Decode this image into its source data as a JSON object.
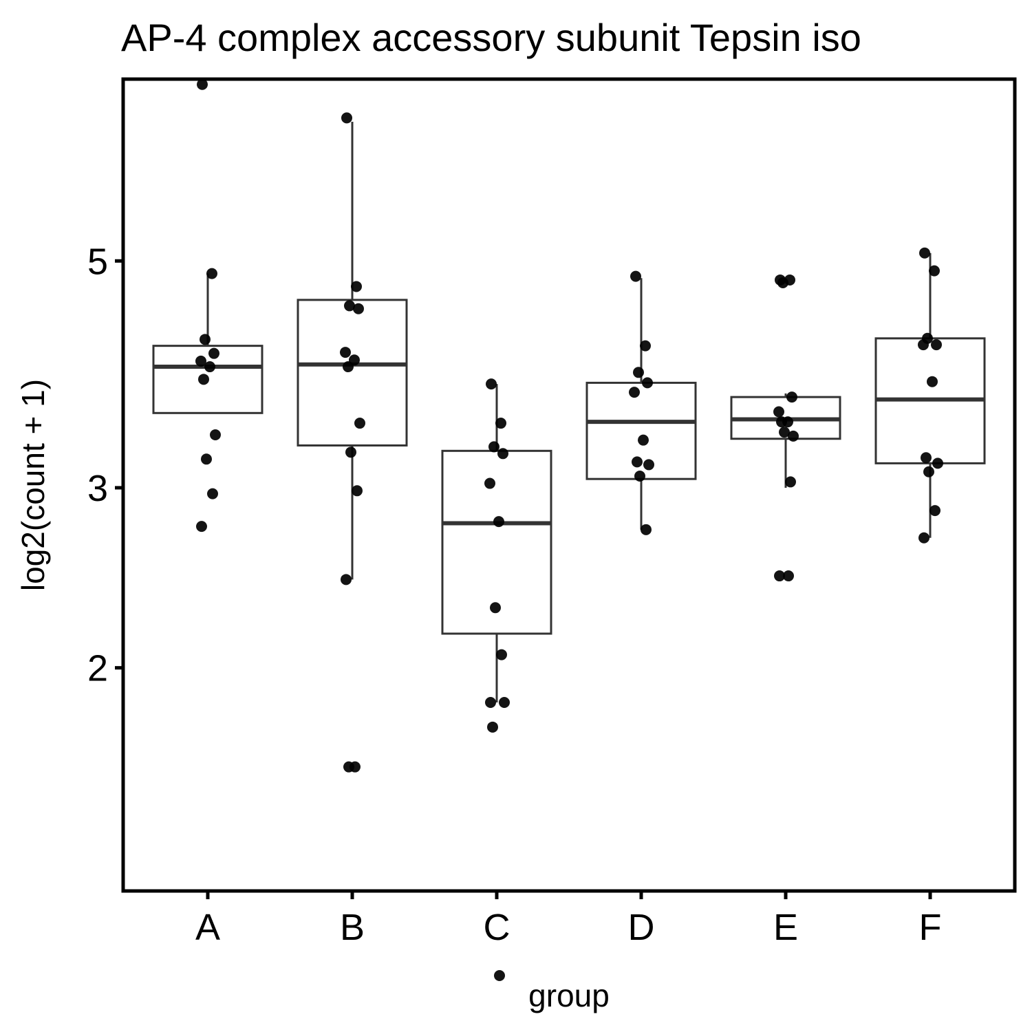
{
  "chart_data": {
    "type": "box",
    "title": "AP-4 complex accessory subunit Tepsin iso",
    "xlabel": "group",
    "ylabel": "log2(count + 1)",
    "scale": "log2",
    "yticks": [
      {
        "value": 2,
        "label": "2"
      },
      {
        "value": 3,
        "label": "3"
      },
      {
        "value": 5,
        "label": "5"
      }
    ],
    "ylim": [
      1.21,
      7.53
    ],
    "grid": false,
    "legend": "none",
    "categories": [
      "A",
      "B",
      "C",
      "D",
      "E",
      "F"
    ],
    "boxes": [
      {
        "group": "A",
        "q1": 3.55,
        "median": 3.94,
        "q3": 4.13,
        "whisker_low": 3.55,
        "whisker_high": 4.86,
        "points": [
          7.44,
          4.86,
          4.19,
          4.06,
          3.99,
          3.94,
          3.83,
          3.38,
          3.2,
          2.96,
          2.75
        ]
      },
      {
        "group": "B",
        "q1": 3.3,
        "median": 3.96,
        "q3": 4.58,
        "whisker_low": 2.44,
        "whisker_high": 6.84,
        "points": [
          6.9,
          4.72,
          4.52,
          4.49,
          4.07,
          4.0,
          3.94,
          3.47,
          3.25,
          2.98,
          2.44,
          1.6,
          1.6
        ]
      },
      {
        "group": "C",
        "q1": 2.16,
        "median": 2.77,
        "q3": 3.26,
        "whisker_low": 1.85,
        "whisker_high": 3.79,
        "points": [
          3.79,
          3.47,
          3.29,
          3.24,
          3.03,
          2.78,
          1.75,
          1.85,
          2.29,
          2.06,
          1.85,
          1.0
        ]
      },
      {
        "group": "D",
        "q1": 3.06,
        "median": 3.48,
        "q3": 3.8,
        "whisker_low": 2.73,
        "whisker_high": 4.81,
        "points": [
          4.83,
          4.13,
          3.89,
          3.8,
          3.72,
          3.34,
          3.18,
          3.16,
          3.08,
          2.73
        ]
      },
      {
        "group": "E",
        "q1": 3.35,
        "median": 3.5,
        "q3": 3.68,
        "whisker_low": 3.0,
        "whisker_high": 3.71,
        "points": [
          4.79,
          4.79,
          4.76,
          3.68,
          3.56,
          3.48,
          3.48,
          3.37,
          3.4,
          3.04,
          2.46,
          2.46
        ]
      },
      {
        "group": "F",
        "q1": 3.17,
        "median": 3.66,
        "q3": 4.2,
        "whisker_low": 2.68,
        "whisker_high": 5.09,
        "points": [
          5.09,
          4.89,
          4.2,
          4.14,
          4.14,
          3.81,
          3.21,
          3.17,
          3.11,
          2.85,
          2.68
        ]
      }
    ]
  }
}
